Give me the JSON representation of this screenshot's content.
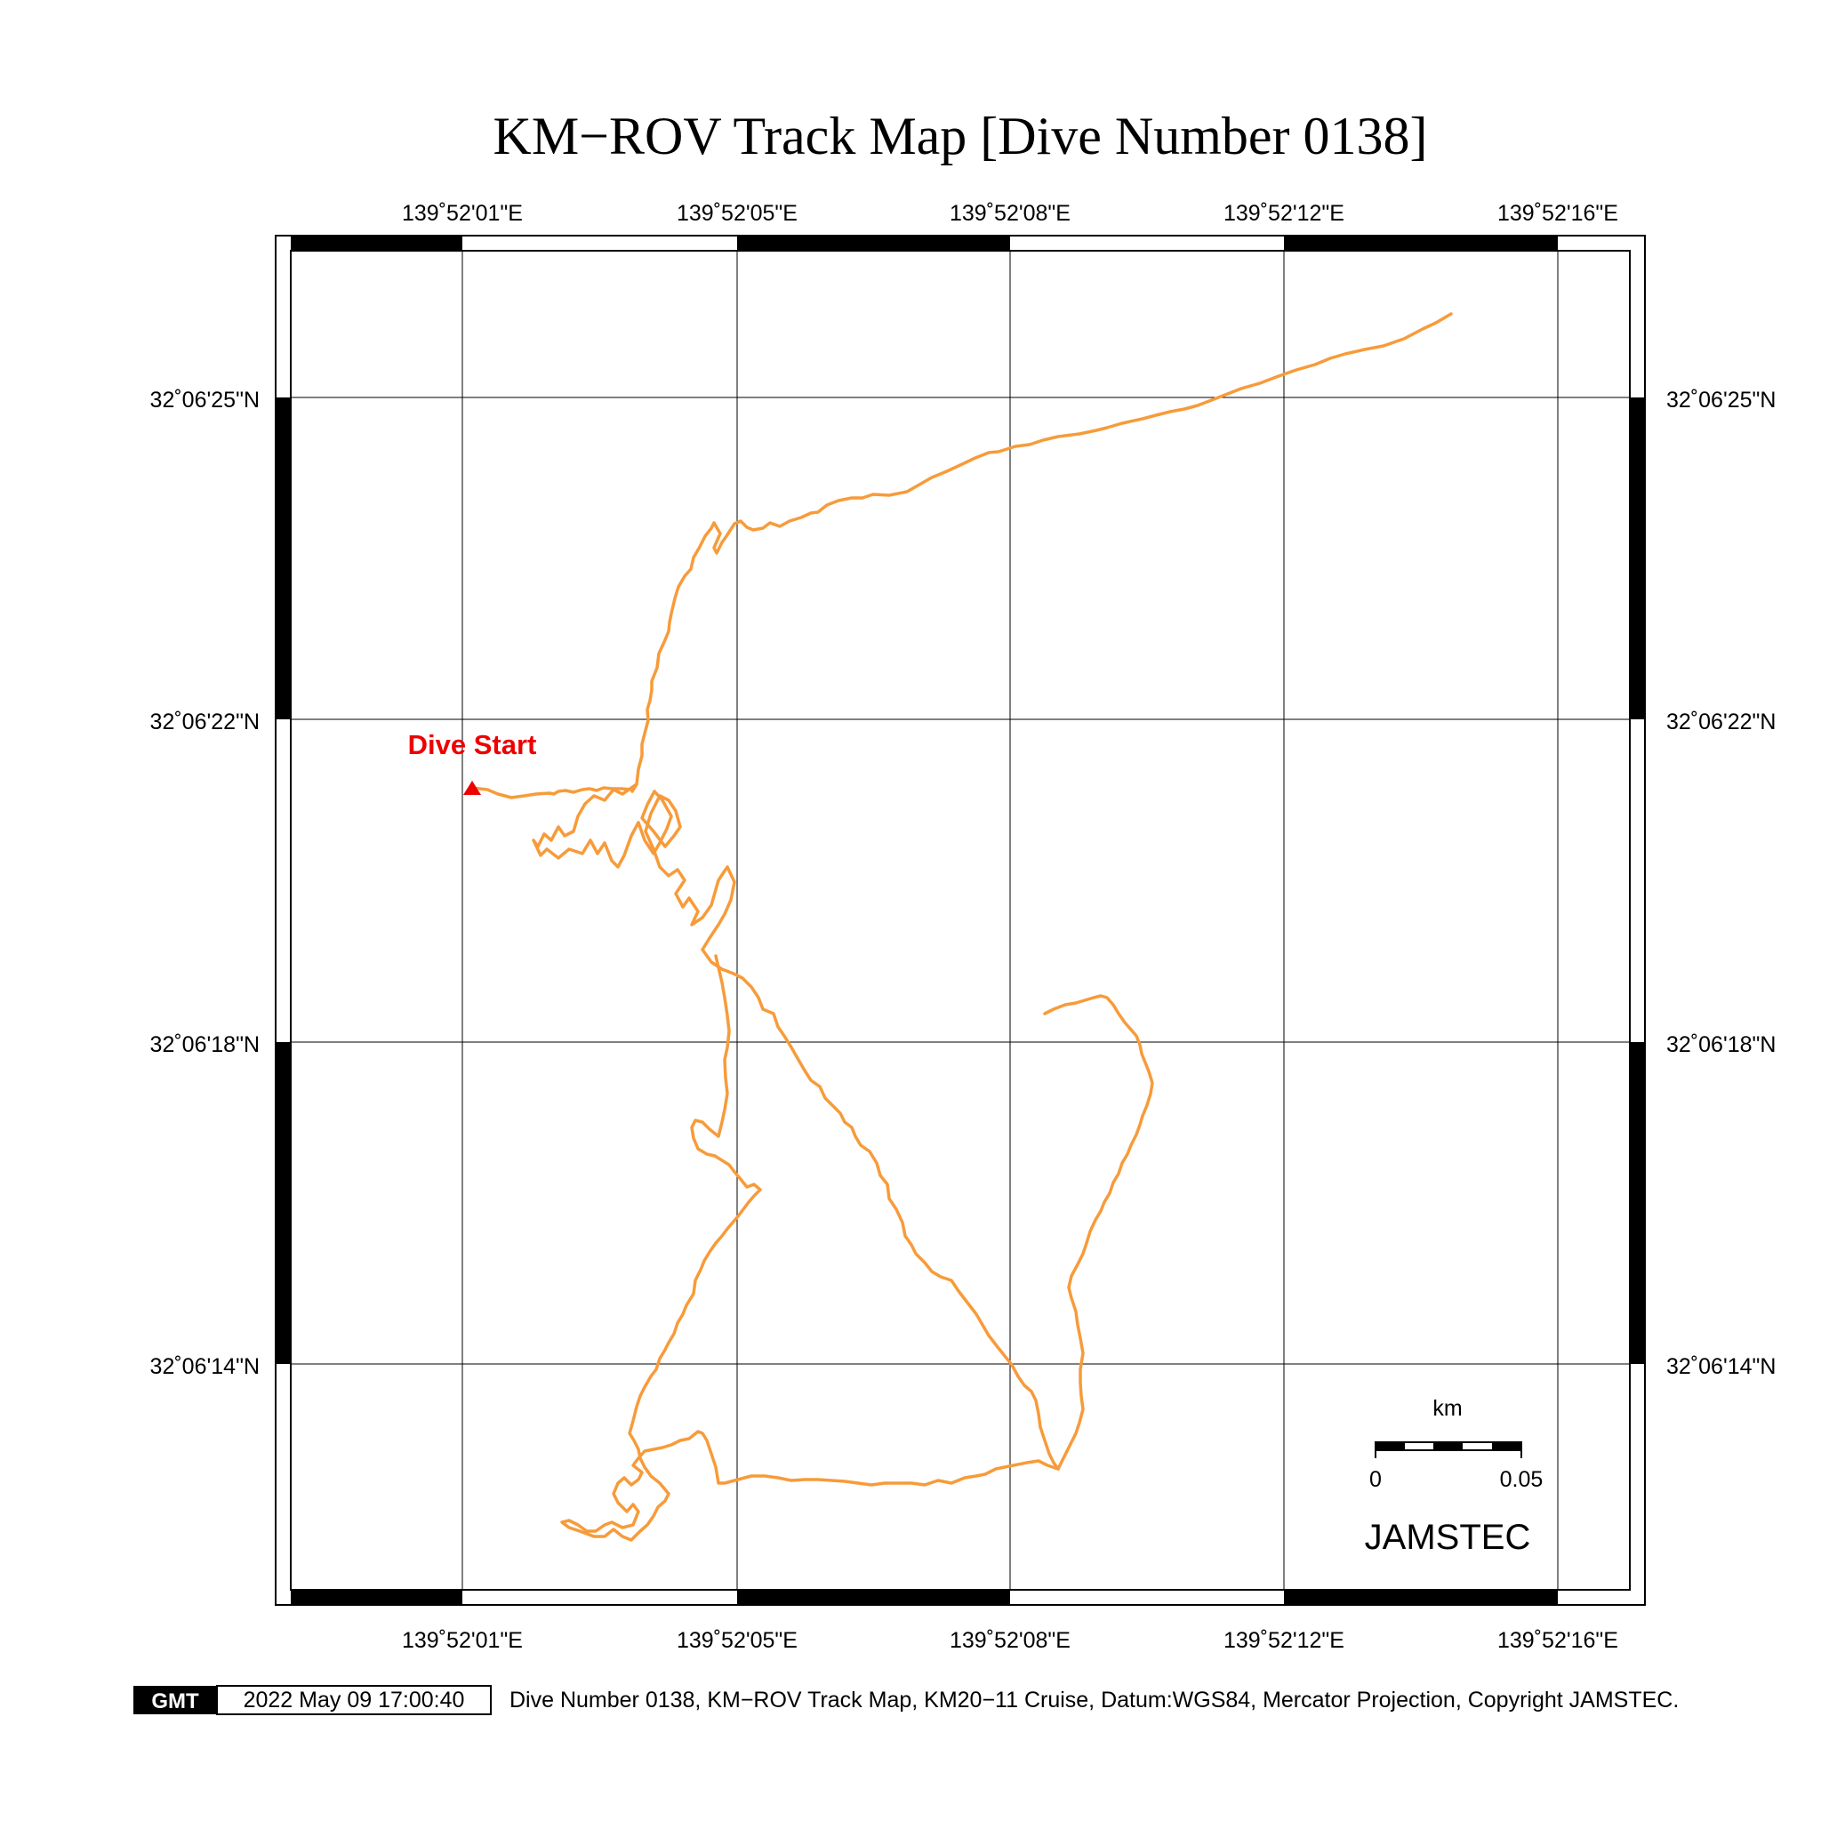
{
  "title": "KM−ROV Track Map [Dive Number 0138]",
  "axes": {
    "x_ticks": [
      "139˚52'01\"E",
      "139˚52'05\"E",
      "139˚52'08\"E",
      "139˚52'12\"E",
      "139˚52'16\"E"
    ],
    "y_ticks": [
      "32˚06'25\"N",
      "32˚06'22\"N",
      "32˚06'18\"N",
      "32˚06'14\"N"
    ]
  },
  "track": {
    "color": "#f79b3a",
    "start_marker_color": "#ee0000",
    "start_label": "Dive Start"
  },
  "scale_bar": {
    "unit": "km",
    "min_label": "0",
    "max_label": "0.05"
  },
  "watermark": "JAMSTEC",
  "footer": {
    "logo": "GMT",
    "timestamp": "2022 May 09 17:00:40",
    "caption": "Dive Number 0138, KM−ROV Track Map, KM20−11 Cruise, Datum:WGS84, Mercator Projection, Copyright JAMSTEC."
  }
}
